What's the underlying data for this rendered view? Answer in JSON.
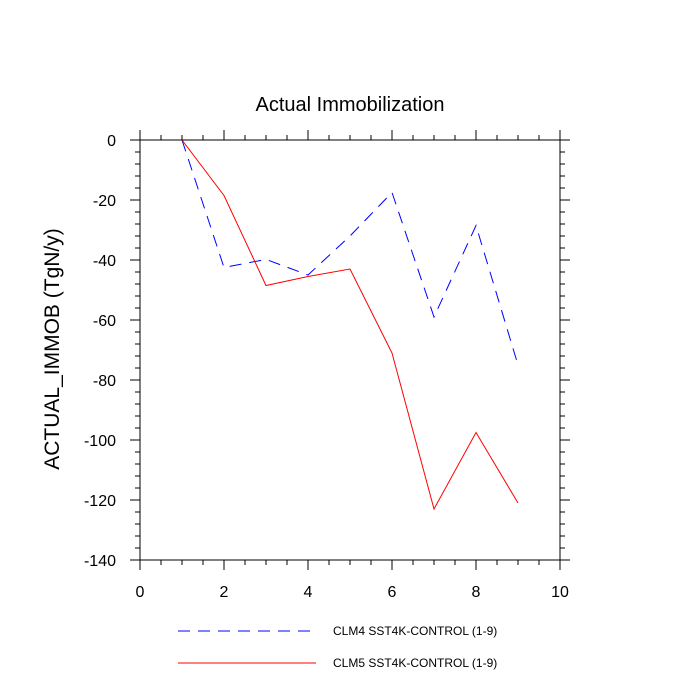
{
  "chart_data": {
    "type": "line",
    "title": "Actual Immobilization",
    "xlabel": "",
    "ylabel": "ACTUAL_IMMOB  (TgN/y)",
    "xlim": [
      0,
      10
    ],
    "ylim": [
      -140,
      0
    ],
    "xticks": [
      0,
      2,
      4,
      6,
      8,
      10
    ],
    "yticks": [
      0,
      -20,
      -40,
      -60,
      -80,
      -100,
      -120,
      -140
    ],
    "grid": false,
    "legend_position": "bottom",
    "x": [
      1,
      2,
      3,
      4,
      5,
      6,
      7,
      8,
      9
    ],
    "series": [
      {
        "name": "CLM4 SST4K-CONTROL (1-9)",
        "color": "#0000ff",
        "style": "dashed",
        "values": [
          0,
          -42.5,
          -39.8,
          -45,
          -32,
          -17.5,
          -59,
          -28.5,
          -75
        ]
      },
      {
        "name": "CLM5 SST4K-CONTROL (1-9)",
        "color": "#ff0000",
        "style": "solid",
        "values": [
          0,
          -18.5,
          -48.5,
          -45.5,
          -43,
          -71,
          -123,
          -97.5,
          -121
        ]
      }
    ]
  }
}
